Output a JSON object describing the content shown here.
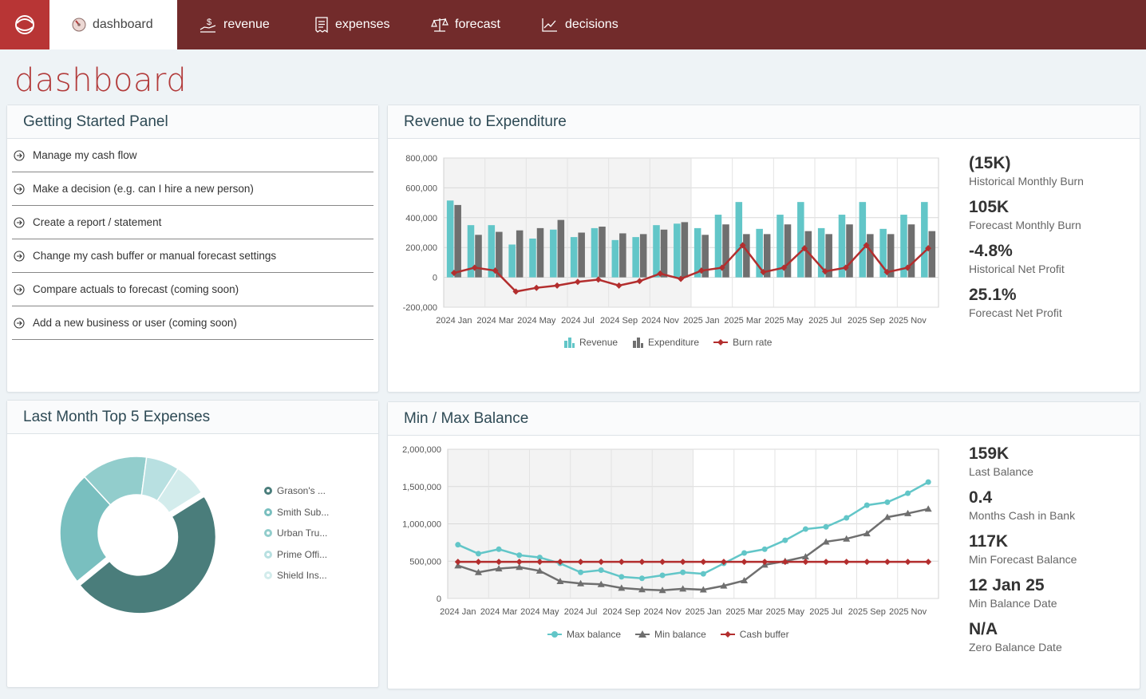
{
  "nav": {
    "tabs": [
      {
        "label": "dashboard",
        "icon": "gauge-icon",
        "active": true
      },
      {
        "label": "revenue",
        "icon": "hand-money-icon"
      },
      {
        "label": "expenses",
        "icon": "receipt-icon"
      },
      {
        "label": "forecast",
        "icon": "scales-icon"
      },
      {
        "label": "decisions",
        "icon": "trend-chart-icon"
      }
    ],
    "logo_icon": "brand-logo-icon",
    "colors": {
      "bar": "#722b2b",
      "logo": "#b83535",
      "accent": "#b23a3a"
    }
  },
  "page": {
    "title": "dashboard"
  },
  "getting_started": {
    "title": "Getting Started Panel",
    "items": [
      "Manage my cash flow",
      "Make a decision (e.g. can I hire a new person)",
      "Create a report / statement",
      "Change my cash buffer or manual forecast settings",
      "Compare actuals to forecast (coming soon)",
      "Add a new business or user (coming soon)"
    ]
  },
  "revenue_panel": {
    "title": "Revenue to Expenditure",
    "stats": [
      {
        "value": "(15K)",
        "label": "Historical Monthly Burn"
      },
      {
        "value": "105K",
        "label": "Forecast Monthly Burn"
      },
      {
        "value": "-4.8%",
        "label": "Historical Net Profit"
      },
      {
        "value": "25.1%",
        "label": "Forecast Net Profit"
      }
    ]
  },
  "expenses_panel": {
    "title": "Last Month Top 5 Expenses",
    "legend": [
      "Grason's ...",
      "Smith Sub...",
      "Urban Tru...",
      "Prime Offi...",
      "Shield Ins..."
    ]
  },
  "balance_panel": {
    "title": "Min / Max Balance",
    "stats": [
      {
        "value": "159K",
        "label": "Last Balance"
      },
      {
        "value": "0.4",
        "label": "Months Cash in Bank"
      },
      {
        "value": "117K",
        "label": "Min Forecast Balance"
      },
      {
        "value": "12 Jan 25",
        "label": "Min Balance Date"
      },
      {
        "value": "N/A",
        "label": "Zero Balance Date"
      }
    ]
  },
  "chart_data": [
    {
      "type": "bar",
      "id": "revenue-expenditure",
      "x_tick_labels": [
        "2024 Jan",
        "2024 Mar",
        "2024 May",
        "2024 Jul",
        "2024 Sep",
        "2024 Nov",
        "2025 Jan",
        "2025 Mar",
        "2025 May",
        "2025 Jul",
        "2025 Sep",
        "2025 Nov"
      ],
      "ylim": [
        -200000,
        800000
      ],
      "y_ticks": [
        -200000,
        0,
        200000,
        400000,
        600000,
        800000
      ],
      "y_tick_labels": [
        "-200,000",
        "0",
        "200,000",
        "400,000",
        "600,000",
        "800,000"
      ],
      "historical_count": 12,
      "series": [
        {
          "name": "Revenue",
          "kind": "bar",
          "color": "#62c6c8",
          "values": [
            515000,
            350000,
            350000,
            220000,
            260000,
            320000,
            270000,
            330000,
            250000,
            270000,
            350000,
            360000,
            330000,
            420000,
            505000,
            325000,
            420000,
            505000,
            330000,
            420000,
            505000,
            325000,
            420000,
            505000
          ]
        },
        {
          "name": "Expenditure",
          "kind": "bar",
          "color": "#6f6f6f",
          "values": [
            485000,
            285000,
            305000,
            315000,
            330000,
            385000,
            300000,
            340000,
            295000,
            290000,
            320000,
            370000,
            285000,
            355000,
            290000,
            290000,
            355000,
            310000,
            290000,
            355000,
            290000,
            290000,
            355000,
            310000
          ]
        },
        {
          "name": "Burn rate",
          "kind": "line",
          "color": "#b32e2e",
          "values": [
            30000,
            65000,
            45000,
            -95000,
            -70000,
            -55000,
            -30000,
            -15000,
            -55000,
            -25000,
            25000,
            -10000,
            45000,
            65000,
            215000,
            35000,
            65000,
            195000,
            40000,
            65000,
            215000,
            35000,
            65000,
            195000
          ]
        }
      ]
    },
    {
      "type": "line",
      "id": "min-max-balance",
      "x_tick_labels": [
        "2024 Jan",
        "2024 Mar",
        "2024 May",
        "2024 Jul",
        "2024 Sep",
        "2024 Nov",
        "2025 Jan",
        "2025 Mar",
        "2025 May",
        "2025 Jul",
        "2025 Sep",
        "2025 Nov"
      ],
      "ylim": [
        0,
        2000000
      ],
      "y_ticks": [
        0,
        500000,
        1000000,
        1500000,
        2000000
      ],
      "y_tick_labels": [
        "0",
        "500,000",
        "1,000,000",
        "1,500,000",
        "2,000,000"
      ],
      "historical_count": 12,
      "series": [
        {
          "name": "Max balance",
          "marker": "circle",
          "color": "#62c6c8",
          "values": [
            720000,
            600000,
            660000,
            580000,
            550000,
            470000,
            350000,
            380000,
            290000,
            270000,
            310000,
            350000,
            330000,
            470000,
            610000,
            660000,
            780000,
            930000,
            960000,
            1080000,
            1250000,
            1290000,
            1410000,
            1560000
          ]
        },
        {
          "name": "Min balance",
          "marker": "triangle",
          "color": "#6f6f6f",
          "values": [
            440000,
            350000,
            400000,
            420000,
            370000,
            230000,
            200000,
            190000,
            140000,
            120000,
            110000,
            130000,
            117000,
            170000,
            240000,
            450000,
            500000,
            560000,
            760000,
            800000,
            870000,
            1090000,
            1140000,
            1200000
          ]
        },
        {
          "name": "Cash buffer",
          "marker": "diamond",
          "color": "#b32e2e",
          "values": [
            490000,
            490000,
            490000,
            490000,
            490000,
            490000,
            490000,
            490000,
            490000,
            490000,
            490000,
            490000,
            490000,
            490000,
            490000,
            490000,
            490000,
            490000,
            490000,
            490000,
            490000,
            490000,
            490000,
            490000
          ]
        }
      ]
    },
    {
      "type": "pie",
      "id": "top-expenses",
      "style": "donut",
      "labels": [
        "Grason's ...",
        "Smith Sub...",
        "Urban Tru...",
        "Prime Offi...",
        "Shield Ins..."
      ],
      "values": [
        48,
        24,
        14,
        7,
        7
      ],
      "colors": [
        "#4a7d7b",
        "#79bfbf",
        "#92cdcc",
        "#b8e0e1",
        "#d3ecec"
      ],
      "pulled_slice": 0
    }
  ]
}
